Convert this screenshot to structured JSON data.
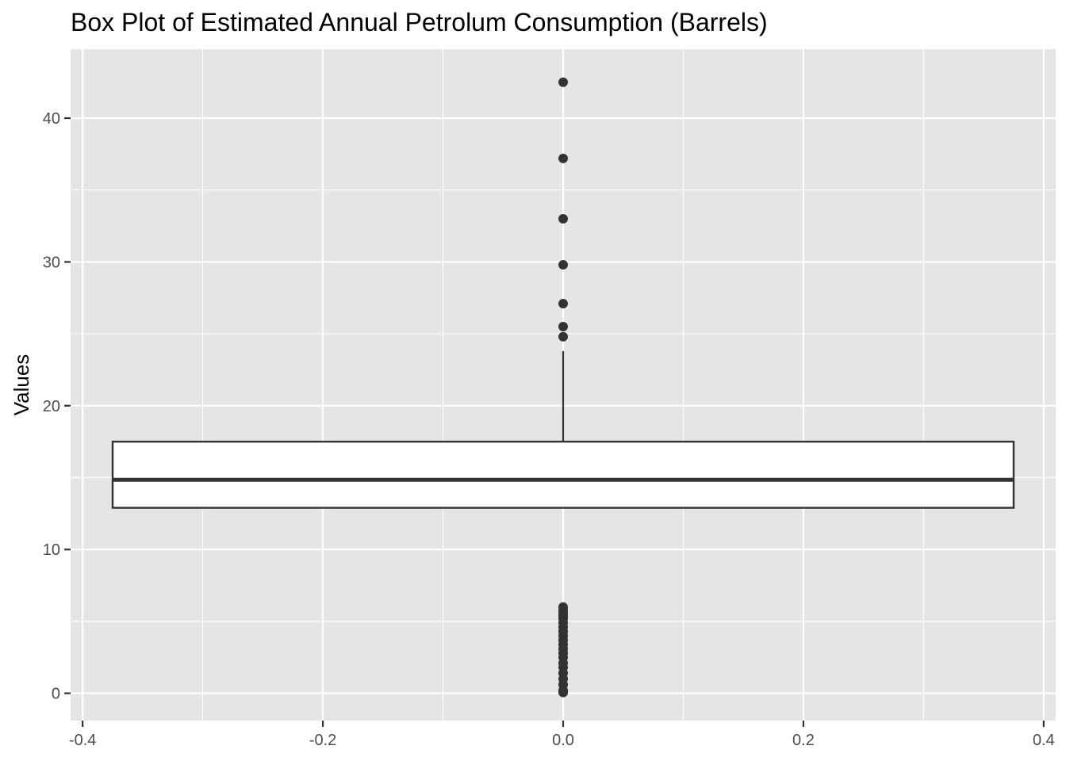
{
  "chart_data": {
    "type": "boxplot",
    "title": "Box Plot of Estimated Annual Petrolum Consumption (Barrels)",
    "xlabel": "",
    "ylabel": "Values",
    "xlim": [
      -0.41,
      0.41
    ],
    "ylim": [
      -1.9,
      44.8
    ],
    "x_ticks": [
      -0.4,
      -0.2,
      0.0,
      0.2,
      0.4
    ],
    "x_tick_labels": [
      "-0.4",
      "-0.2",
      "0.0",
      "0.2",
      "0.4"
    ],
    "y_ticks": [
      0,
      10,
      20,
      30,
      40
    ],
    "y_tick_labels": [
      "0",
      "10",
      "20",
      "30",
      "40"
    ],
    "grid": true,
    "box": {
      "x_center": 0.0,
      "x_left": -0.375,
      "x_right": 0.375,
      "q1": 12.9,
      "median": 14.85,
      "q3": 17.5,
      "whisker_low": 12.9,
      "whisker_high": 23.8
    },
    "outliers": [
      42.5,
      37.2,
      33.0,
      29.8,
      27.1,
      25.5,
      24.8,
      6.0,
      5.8,
      5.6,
      5.4,
      5.2,
      4.9,
      4.6,
      4.3,
      4.0,
      3.7,
      3.4,
      3.1,
      2.8,
      2.5,
      2.1,
      1.8,
      1.4,
      1.0,
      0.6,
      0.2,
      0.05
    ],
    "colors": {
      "panel_background": "#e5e5e5",
      "grid": "#ffffff",
      "box_fill": "#ffffff",
      "box_stroke": "#333333",
      "point": "#333333",
      "tick": "#333333",
      "tick_text": "#4d4d4d"
    }
  }
}
